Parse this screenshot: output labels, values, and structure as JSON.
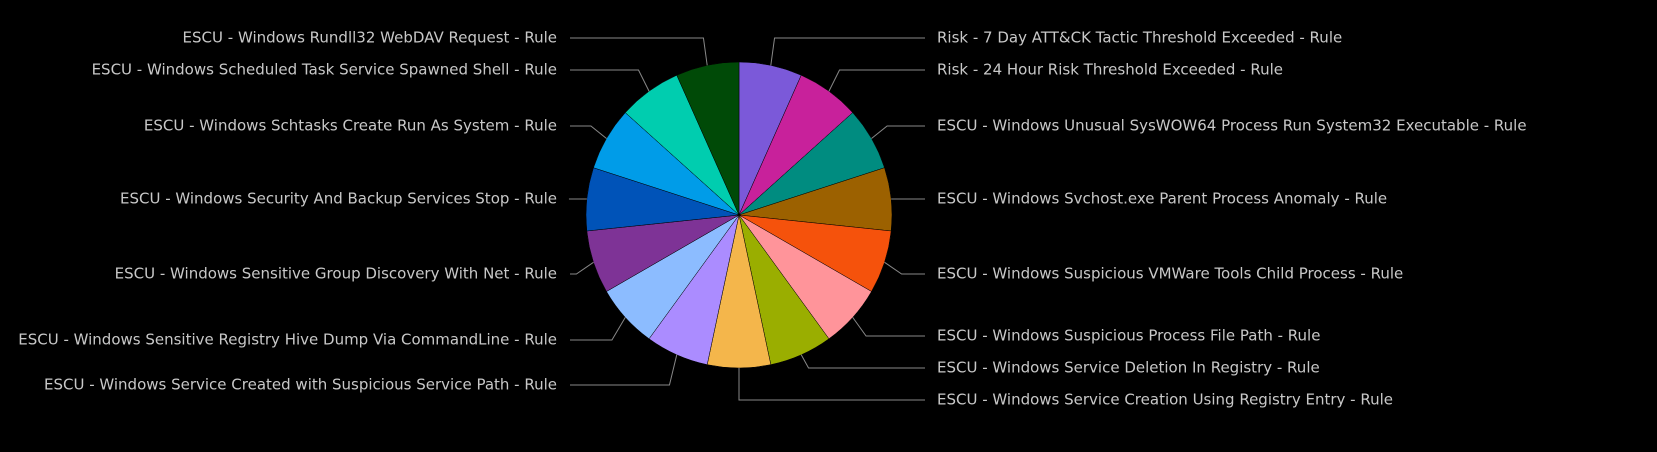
{
  "chart_data": {
    "type": "pie",
    "categories": [
      "Risk - 7 Day ATT&CK Tactic Threshold Exceeded - Rule",
      "Risk - 24 Hour Risk Threshold Exceeded - Rule",
      "ESCU - Windows Unusual SysWOW64 Process Run System32 Executable - Rule",
      "ESCU - Windows Svchost.exe Parent Process Anomaly - Rule",
      "ESCU - Windows Suspicious VMWare Tools Child Process - Rule",
      "ESCU - Windows Suspicious Process File Path - Rule",
      "ESCU - Windows Service Deletion In Registry - Rule",
      "ESCU - Windows Service Creation Using Registry Entry - Rule",
      "ESCU - Windows Service Created with Suspicious Service Path - Rule",
      "ESCU - Windows Sensitive Registry Hive Dump Via CommandLine - Rule",
      "ESCU - Windows Sensitive Group Discovery With Net - Rule",
      "ESCU - Windows Security And Backup Services Stop - Rule",
      "ESCU - Windows Schtasks Create Run As System - Rule",
      "ESCU - Windows Scheduled Task Service Spawned Shell - Rule",
      "ESCU - Windows Rundll32 WebDAV Request - Rule"
    ],
    "values": [
      1,
      1,
      1,
      1,
      1,
      1,
      1,
      1,
      1,
      1,
      1,
      1,
      1,
      1,
      1
    ],
    "colors": [
      "#7b59d9",
      "#c8219b",
      "#008c80",
      "#9c6100",
      "#f5520c",
      "#ff949a",
      "#9aae00",
      "#f4b64b",
      "#ab8cff",
      "#8cbcff",
      "#7e3396",
      "#0053b8",
      "#009ce8",
      "#00cdaf",
      "#004a07"
    ]
  }
}
